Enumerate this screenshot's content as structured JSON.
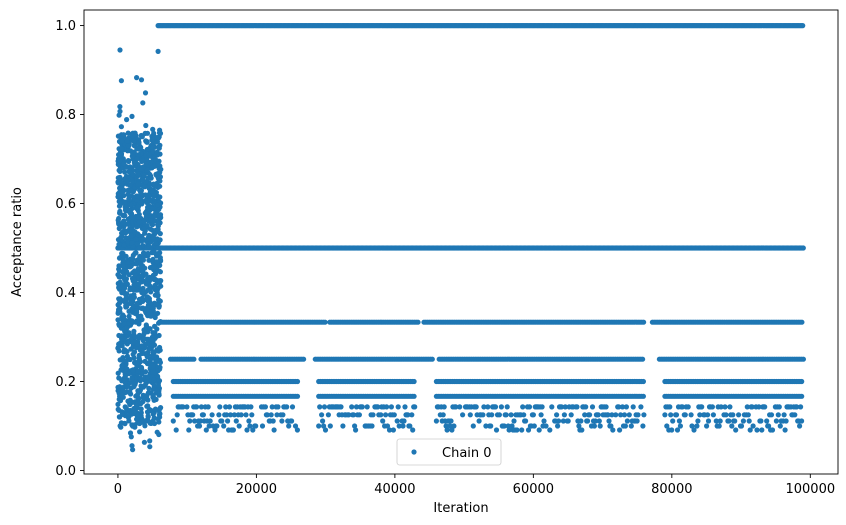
{
  "chart_data": {
    "type": "scatter",
    "xlabel": "Iteration",
    "ylabel": "Acceptance ratio",
    "xlim": [
      -4900,
      104000
    ],
    "ylim": [
      -0.008,
      1.035
    ],
    "xticks": [
      0,
      20000,
      40000,
      60000,
      80000,
      100000
    ],
    "xtick_labels": [
      "0",
      "20000",
      "40000",
      "60000",
      "80000",
      "100000"
    ],
    "yticks": [
      0.0,
      0.2,
      0.4,
      0.6,
      0.8,
      1.0
    ],
    "ytick_labels": [
      "0.0",
      "0.2",
      "0.4",
      "0.6",
      "0.8",
      "1.0"
    ],
    "grid": false,
    "legend_position": "bottom-center",
    "marker_color": "#1f77b4",
    "series": [
      {
        "name": "Chain 0",
        "marker": "point",
        "warmup_region": {
          "x_range": [
            0,
            6200
          ],
          "y_range": [
            0.04,
            0.945
          ],
          "highlight_points": [
            [
              300,
              0.945
            ],
            [
              5800,
              0.942
            ],
            [
              2700,
              0.883
            ],
            [
              500,
              0.876
            ],
            [
              3400,
              0.878
            ]
          ]
        },
        "levels": [
          {
            "y": 1.0,
            "segments": [
              [
                5800,
                99000
              ]
            ]
          },
          {
            "y": 0.5,
            "segments": [
              [
                0,
                99000
              ]
            ]
          },
          {
            "y": 0.3333,
            "segments": [
              [
                6000,
                30000
              ],
              [
                30600,
                43500
              ],
              [
                44200,
                76000
              ],
              [
                77200,
                99000
              ]
            ]
          },
          {
            "y": 0.25,
            "segments": [
              [
                7600,
                11200
              ],
              [
                12000,
                27000
              ],
              [
                28500,
                45500
              ],
              [
                46400,
                76000
              ],
              [
                78200,
                99000
              ]
            ]
          },
          {
            "y": 0.2,
            "segments": [
              [
                8000,
                26000
              ],
              [
                29000,
                43000
              ],
              [
                46000,
                76000
              ],
              [
                79000,
                99000
              ]
            ]
          },
          {
            "y": 0.1667,
            "segments": [
              [
                8000,
                26000
              ],
              [
                29000,
                43000
              ],
              [
                46000,
                76000
              ],
              [
                79000,
                99000
              ]
            ]
          }
        ]
      }
    ]
  }
}
